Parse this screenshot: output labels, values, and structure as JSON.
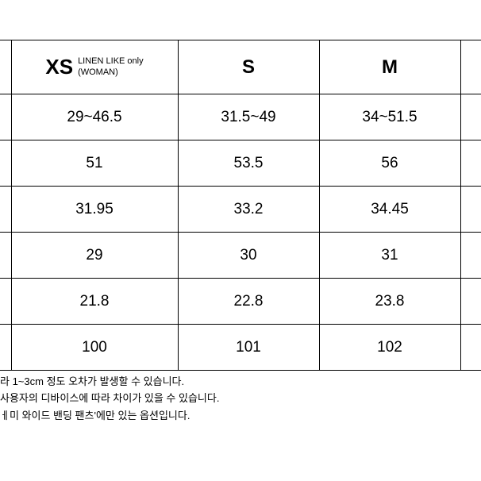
{
  "table": {
    "type": "table",
    "columns": [
      {
        "key": "xs",
        "label_main": "XS",
        "label_sub1": "LINEN LIKE only",
        "label_sub2": "(WOMAN)"
      },
      {
        "key": "s",
        "label": "S"
      },
      {
        "key": "m",
        "label": "M"
      }
    ],
    "rows": [
      {
        "xs": "29~46.5",
        "s": "31.5~49",
        "m": "34~51.5"
      },
      {
        "xs": "51",
        "s": "53.5",
        "m": "56"
      },
      {
        "xs": "31.95",
        "s": "33.2",
        "m": "34.45"
      },
      {
        "xs": "29",
        "s": "30",
        "m": "31"
      },
      {
        "xs": "21.8",
        "s": "22.8",
        "m": "23.8"
      },
      {
        "xs": "100",
        "s": "101",
        "m": "102"
      }
    ],
    "border_color": "#000000",
    "background_color": "#ffffff",
    "header_fontsize": 24,
    "cell_fontsize": 19,
    "xs_sub_fontsize": 11
  },
  "notes": {
    "line1": "라 1~3cm 정도 오차가 발생할 수 있습니다.",
    "line2": "사용자의 디바이스에 따라 차이가 있을 수 있습니다.",
    "line3": "ㅔ미 와이드 밴딩 팬츠'에만 있는 옵션입니다.",
    "fontsize": 13,
    "color": "#000000"
  }
}
